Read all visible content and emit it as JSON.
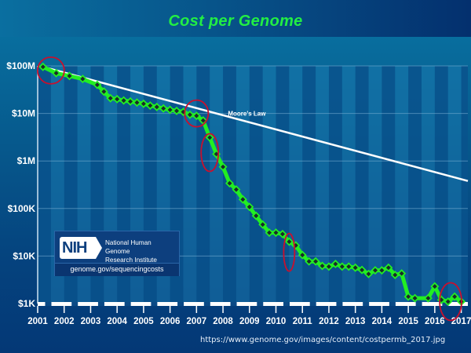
{
  "chart_data": {
    "type": "line",
    "title": "Cost per Genome",
    "xlabel": "",
    "ylabel": "",
    "yscale": "log",
    "ylim": [
      1000,
      100000000
    ],
    "y_ticks": [
      {
        "value": 100000000,
        "label": "$100M"
      },
      {
        "value": 10000000,
        "label": "$10M"
      },
      {
        "value": 1000000,
        "label": "$1M"
      },
      {
        "value": 100000,
        "label": "$100K"
      },
      {
        "value": 10000,
        "label": "$10K"
      },
      {
        "value": 1000,
        "label": "$1K"
      }
    ],
    "x_ticks": [
      "2001",
      "2002",
      "2003",
      "2004",
      "2005",
      "2006",
      "2007",
      "2008",
      "2009",
      "2010",
      "2011",
      "2012",
      "2013",
      "2014",
      "2015",
      "2016",
      "2017"
    ],
    "xlim": [
      2001.5,
      2017.75
    ],
    "grid": true,
    "series": [
      {
        "name": "Cost per Genome",
        "color": "#22ee22",
        "marker_color": "#1a2a2a",
        "points": [
          {
            "x": 2001.7,
            "y": 95300000
          },
          {
            "x": 2002.2,
            "y": 70200000
          },
          {
            "x": 2002.7,
            "y": 61400000
          },
          {
            "x": 2003.2,
            "y": 53100000
          },
          {
            "x": 2003.75,
            "y": 40000000
          },
          {
            "x": 2004.0,
            "y": 28800000
          },
          {
            "x": 2004.25,
            "y": 20900000
          },
          {
            "x": 2004.5,
            "y": 20000000
          },
          {
            "x": 2004.75,
            "y": 18700000
          },
          {
            "x": 2005.0,
            "y": 17800000
          },
          {
            "x": 2005.25,
            "y": 16900000
          },
          {
            "x": 2005.5,
            "y": 16000000
          },
          {
            "x": 2005.75,
            "y": 14600000
          },
          {
            "x": 2006.0,
            "y": 13700000
          },
          {
            "x": 2006.25,
            "y": 12700000
          },
          {
            "x": 2006.5,
            "y": 11900000
          },
          {
            "x": 2006.75,
            "y": 11300000
          },
          {
            "x": 2007.0,
            "y": 10800000
          },
          {
            "x": 2007.25,
            "y": 9400000
          },
          {
            "x": 2007.5,
            "y": 8900000
          },
          {
            "x": 2007.75,
            "y": 7100000
          },
          {
            "x": 2008.0,
            "y": 3100000
          },
          {
            "x": 2008.25,
            "y": 1400000
          },
          {
            "x": 2008.5,
            "y": 750000
          },
          {
            "x": 2008.75,
            "y": 340000
          },
          {
            "x": 2009.0,
            "y": 250000
          },
          {
            "x": 2009.25,
            "y": 155000
          },
          {
            "x": 2009.5,
            "y": 108000
          },
          {
            "x": 2009.75,
            "y": 70000
          },
          {
            "x": 2010.0,
            "y": 46000
          },
          {
            "x": 2010.25,
            "y": 31000
          },
          {
            "x": 2010.5,
            "y": 31000
          },
          {
            "x": 2010.75,
            "y": 29000
          },
          {
            "x": 2011.0,
            "y": 20000
          },
          {
            "x": 2011.25,
            "y": 16700
          },
          {
            "x": 2011.5,
            "y": 10500
          },
          {
            "x": 2011.75,
            "y": 7700
          },
          {
            "x": 2012.0,
            "y": 7700
          },
          {
            "x": 2012.25,
            "y": 6200
          },
          {
            "x": 2012.5,
            "y": 6000
          },
          {
            "x": 2012.75,
            "y": 6800
          },
          {
            "x": 2013.0,
            "y": 6000
          },
          {
            "x": 2013.25,
            "y": 6000
          },
          {
            "x": 2013.5,
            "y": 5700
          },
          {
            "x": 2013.75,
            "y": 5100
          },
          {
            "x": 2014.0,
            "y": 4200
          },
          {
            "x": 2014.25,
            "y": 5000
          },
          {
            "x": 2014.5,
            "y": 5000
          },
          {
            "x": 2014.75,
            "y": 5700
          },
          {
            "x": 2015.0,
            "y": 4000
          },
          {
            "x": 2015.25,
            "y": 4300
          },
          {
            "x": 2015.5,
            "y": 1400
          },
          {
            "x": 2015.75,
            "y": 1300
          },
          {
            "x": 2016.25,
            "y": 1300
          },
          {
            "x": 2016.5,
            "y": 2300
          },
          {
            "x": 2016.75,
            "y": 1200
          },
          {
            "x": 2017.0,
            "y": 1100
          },
          {
            "x": 2017.25,
            "y": 1400
          },
          {
            "x": 2017.5,
            "y": 1100
          }
        ]
      },
      {
        "name": "Moore's Law",
        "color": "#ffffff",
        "points": [
          {
            "x": 2001.7,
            "y": 95300000
          },
          {
            "x": 2017.75,
            "y": 380000
          }
        ]
      }
    ],
    "annotations": [
      {
        "text": "Moore's Law",
        "x": 2009.4,
        "y": 9000000
      },
      {
        "type": "red-circle",
        "x": 2002.0,
        "y": 80000000
      },
      {
        "type": "red-circle",
        "x": 2007.5,
        "y": 10000000
      },
      {
        "type": "red-circle",
        "x": 2008.0,
        "y": 1500000
      },
      {
        "type": "red-circle",
        "x": 2011.0,
        "y": 12000
      },
      {
        "type": "red-circle",
        "x": 2017.1,
        "y": 1100
      }
    ]
  },
  "logo": {
    "mark": "NIH",
    "org_line1": "National Human Genome",
    "org_line2": "Research Institute",
    "url": "genome.gov/sequencingcosts"
  },
  "source_url": "https://www.genome.gov/images/content/costpermb_2017.jpg"
}
